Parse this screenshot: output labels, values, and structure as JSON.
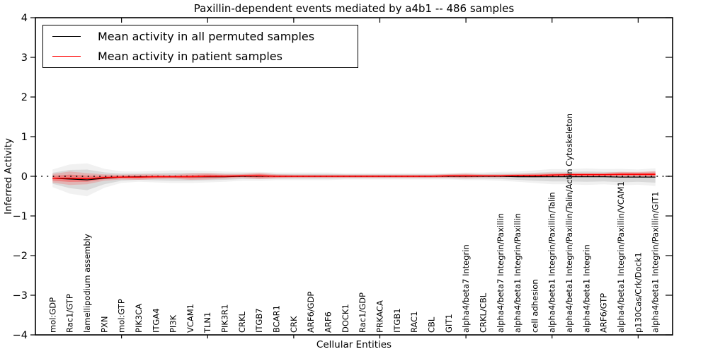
{
  "title": "Paxillin-dependent events mediated by a4b1 -- 486 samples",
  "legend": {
    "items": [
      {
        "label": "Mean activity in all permuted samples",
        "color": "#000000"
      },
      {
        "label": "Mean activity in patient samples",
        "color": "#ff0000"
      }
    ]
  },
  "colors": {
    "axis": "#000000",
    "permuted_line": "#000000",
    "patient_line": "#ff0000",
    "permuted_band": "#aaaaaa",
    "patient_band": "#ff3333",
    "zero_line": "#000000"
  },
  "chart_data": {
    "type": "line",
    "title": "Paxillin-dependent events mediated by a4b1 -- 486 samples",
    "xlabel": "Cellular Entities",
    "ylabel": "Inferred Activity",
    "ylim": [
      -4,
      4
    ],
    "yticks": [
      -4,
      -3,
      -2,
      -1,
      0,
      1,
      2,
      3,
      4
    ],
    "ytick_labels": [
      "−4",
      "−3",
      "−2",
      "−1",
      "0",
      "1",
      "2",
      "3",
      "4"
    ],
    "xlim": [
      0,
      37
    ],
    "xtick_positions": [
      5,
      10,
      15,
      20,
      25,
      30,
      35
    ],
    "grid": false,
    "legend_position": "upper left",
    "zero_line": {
      "y": 0,
      "style": "dotted",
      "color": "#000000"
    },
    "categories": [
      "mol:GDP",
      "Rac1/GTP",
      "lamellipodium assembly",
      "PXN",
      "mol:GTP",
      "PIK3CA",
      "ITGA4",
      "PI3K",
      "VCAM1",
      "TLN1",
      "PIK3R1",
      "CRKL",
      "ITGB7",
      "BCAR1",
      "CRK",
      "ARF6/GDP",
      "ARF6",
      "DOCK1",
      "Rac1/GDP",
      "PRKACA",
      "ITGB1",
      "RAC1",
      "CBL",
      "GIT1",
      "alpha4/beta7 Integrin",
      "CRKL/CBL",
      "alpha4/beta7 Integrin/Paxillin",
      "alpha4/beta1 Integrin/Paxillin",
      "cell adhesion",
      "alpha4/beta1 Integrin/Paxillin/Talin",
      "alpha4/beta1 Integrin/Paxillin/Talin/Actin Cytoskeleton",
      "alpha4/beta1 Integrin",
      "ARF6/GTP",
      "alpha4/beta1 Integrin/Paxillin/VCAM1",
      "p130Cas/Crk/Dock1",
      "alpha4/beta1 Integrin/Paxillin/GIT1"
    ],
    "series": [
      {
        "name": "Mean activity in all permuted samples",
        "color": "#000000",
        "line_style": "solid",
        "values": [
          -0.05,
          -0.07,
          -0.09,
          -0.05,
          -0.02,
          -0.01,
          -0.01,
          -0.01,
          -0.01,
          -0.01,
          -0.01,
          0.0,
          0.0,
          0.0,
          0.0,
          0.0,
          0.0,
          0.0,
          0.0,
          0.0,
          0.0,
          0.0,
          0.0,
          0.0,
          0.0,
          0.0,
          0.0,
          -0.01,
          -0.01,
          -0.01,
          -0.01,
          -0.01,
          -0.01,
          -0.02,
          -0.02,
          -0.02
        ],
        "band_halfwidth": [
          0.14,
          0.23,
          0.26,
          0.15,
          0.09,
          0.08,
          0.09,
          0.1,
          0.1,
          0.09,
          0.08,
          0.07,
          0.07,
          0.06,
          0.06,
          0.06,
          0.06,
          0.05,
          0.05,
          0.05,
          0.05,
          0.05,
          0.05,
          0.05,
          0.06,
          0.06,
          0.07,
          0.08,
          0.1,
          0.12,
          0.12,
          0.13,
          0.12,
          0.13,
          0.12,
          0.14
        ],
        "band_color": "#aaaaaa"
      },
      {
        "name": "Mean activity in patient samples",
        "color": "#ff0000",
        "line_style": "solid",
        "values": [
          -0.05,
          -0.05,
          -0.06,
          -0.03,
          -0.02,
          -0.02,
          -0.01,
          -0.01,
          -0.01,
          0.0,
          0.0,
          0.01,
          0.01,
          0.0,
          0.0,
          0.0,
          0.0,
          0.0,
          0.0,
          0.0,
          0.0,
          0.0,
          0.0,
          0.01,
          0.01,
          0.01,
          0.01,
          0.02,
          0.02,
          0.03,
          0.04,
          0.04,
          0.04,
          0.05,
          0.05,
          0.05
        ],
        "band_halfwidth": [
          0.11,
          0.17,
          0.14,
          0.08,
          0.06,
          0.07,
          0.06,
          0.05,
          0.08,
          0.08,
          0.06,
          0.05,
          0.08,
          0.05,
          0.04,
          0.04,
          0.04,
          0.04,
          0.04,
          0.04,
          0.04,
          0.04,
          0.04,
          0.05,
          0.06,
          0.04,
          0.04,
          0.04,
          0.05,
          0.05,
          0.05,
          0.05,
          0.05,
          0.06,
          0.06,
          0.08
        ],
        "band_color": "#ff3333"
      }
    ]
  }
}
